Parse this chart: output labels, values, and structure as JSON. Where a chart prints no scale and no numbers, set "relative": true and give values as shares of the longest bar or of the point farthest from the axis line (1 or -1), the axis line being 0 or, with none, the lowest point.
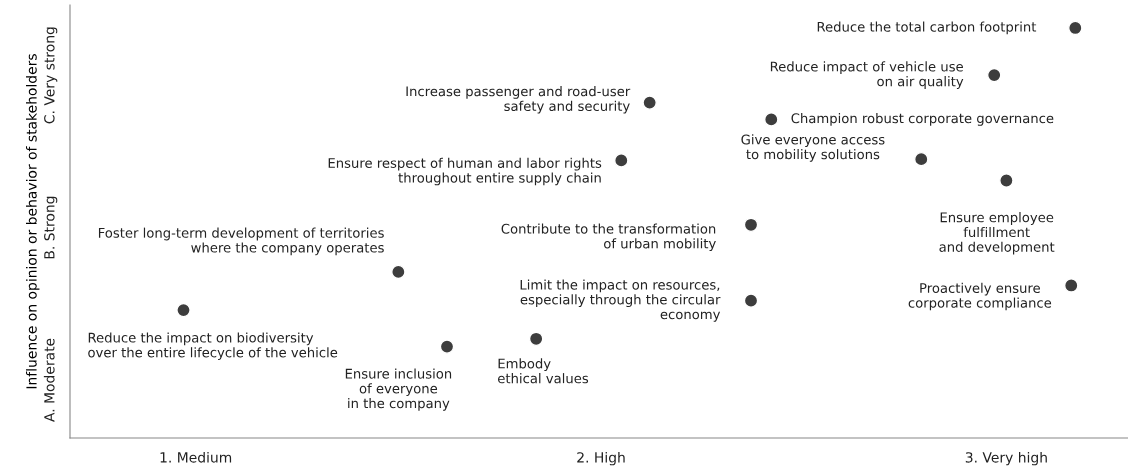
{
  "chart_data": {
    "type": "scatter",
    "relative": true,
    "ylabel": "Influence on opinion or behavior of stakeholders",
    "xlim": [
      0.69,
      3.3
    ],
    "xticks": [
      {
        "value": 1,
        "label": "1. Medium"
      },
      {
        "value": 2,
        "label": "2. High"
      },
      {
        "value": 3,
        "label": "3. Very high"
      }
    ],
    "grid": false,
    "marker": "circle",
    "series": [
      {
        "color": "#3d3d3d",
        "x": [
          3.17,
          2.97,
          2.12,
          2.42,
          2.05,
          2.79,
          3.0,
          2.37,
          1.5,
          3.16,
          2.37,
          0.97,
          1.62,
          1.84
        ],
        "values": [
          1.0,
          0.885,
          0.818,
          0.777,
          0.677,
          0.68,
          0.628,
          0.52,
          0.405,
          0.372,
          0.335,
          0.312,
          0.223,
          0.242
        ]
      }
    ],
    "annotations": [
      {
        "text": "Reduce the total carbon footprint",
        "x": 3.17,
        "y": 1.0
      },
      {
        "text": "Reduce impact of vehicle use\non air quality",
        "x": 2.97,
        "y": 0.885
      },
      {
        "text": "Increase passenger and road-user\nsafety and security",
        "x": 2.12,
        "y": 0.818
      },
      {
        "text": "Champion robust corporate governance",
        "x": 2.42,
        "y": 0.777
      },
      {
        "text": "Ensure respect of human and labor rights\nthroughout entire supply chain",
        "x": 2.05,
        "y": 0.677
      },
      {
        "text": "Give everyone access\nto mobility solutions",
        "x": 2.79,
        "y": 0.68
      },
      {
        "text": "Ensure employee\nfulfillment\nand development",
        "x": 3.0,
        "y": 0.628
      },
      {
        "text": "Contribute to the transformation\nof urban mobility",
        "x": 2.37,
        "y": 0.52
      },
      {
        "text": "Foster long-term development of territories\nwhere the company operates",
        "x": 1.5,
        "y": 0.405
      },
      {
        "text": "Proactively ensure\ncorporate compliance",
        "x": 3.16,
        "y": 0.372
      },
      {
        "text": "Limit the impact on resources,\nespecially through the circular\neconomy",
        "x": 2.37,
        "y": 0.335
      },
      {
        "text": "Reduce the impact on biodiversity\nover the entire lifecycle of the vehicle",
        "x": 0.97,
        "y": 0.312
      },
      {
        "text": "Ensure inclusion\nof everyone\nin the company",
        "x": 1.62,
        "y": 0.223
      },
      {
        "text": "Embody\nethical values",
        "x": 1.84,
        "y": 0.242
      },
      "A. Moderate",
      "B. Strong",
      "C. Very strong"
    ]
  }
}
